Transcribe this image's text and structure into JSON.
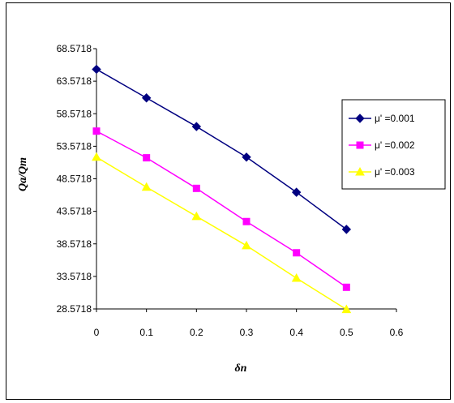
{
  "chart_data": {
    "type": "line",
    "title": "",
    "xlabel": "δn",
    "ylabel": "Qa/Qm",
    "x_ticks": [
      "0",
      "0.1",
      "0.2",
      "0.3",
      "0.4",
      "0.5",
      "0.6"
    ],
    "y_ticks": [
      "28.5718",
      "33.5718",
      "38.5718",
      "43.5718",
      "48.5718",
      "53.5718",
      "58.5718",
      "63.5718",
      "68.5718"
    ],
    "xlim": [
      0,
      0.6
    ],
    "ylim": [
      28.5718,
      68.5718
    ],
    "grid": false,
    "legend_position": "right",
    "x": [
      0,
      0.1,
      0.2,
      0.3,
      0.4,
      0.5
    ],
    "series": [
      {
        "name": "μ' =0.001",
        "color": "#000080",
        "marker": "diamond",
        "values": [
          65.4,
          61.0,
          56.6,
          51.9,
          46.5,
          40.8
        ]
      },
      {
        "name": "μ' =0.002",
        "color": "#ff00ff",
        "marker": "square",
        "values": [
          55.9,
          51.8,
          47.1,
          42.0,
          37.2,
          31.9
        ]
      },
      {
        "name": "μ' =0.003",
        "color": "#ffff00",
        "marker": "triangle",
        "values": [
          51.9,
          47.3,
          42.8,
          38.3,
          33.3,
          28.5
        ]
      }
    ]
  }
}
